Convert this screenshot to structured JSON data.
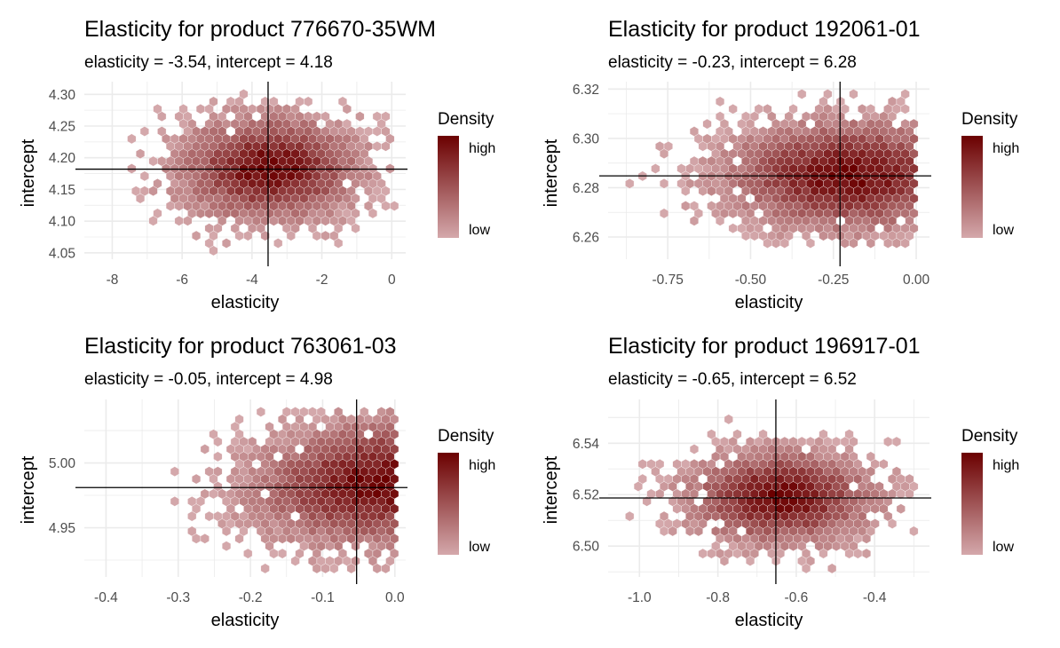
{
  "chart_data": [
    {
      "type": "heatmap",
      "title": "Elasticity for product 776670-35WM",
      "subtitle": "elasticity = -3.54, intercept = 4.18",
      "xlabel": "elasticity",
      "ylabel": "intercept",
      "xlim": [
        -8.8,
        0.4
      ],
      "ylim": [
        4.04,
        4.32
      ],
      "xticks": [
        -8,
        -6,
        -4,
        -2,
        0
      ],
      "xtick_labels": [
        "-8",
        "-6",
        "-4",
        "-2",
        "0"
      ],
      "yticks": [
        4.05,
        4.1,
        4.15,
        4.2,
        4.25,
        4.3
      ],
      "ytick_labels": [
        "4.05",
        "4.10",
        "4.15",
        "4.20",
        "4.25",
        "4.30"
      ],
      "vline": -3.54,
      "hline": 4.182,
      "density_center": [
        -3.5,
        4.183
      ],
      "density_spread": [
        1.65,
        0.052
      ],
      "density_tilt": 0,
      "data_extent": [
        -8.5,
        0.1,
        4.05,
        4.31
      ],
      "legend": {
        "title": "Density",
        "high": "high",
        "low": "low"
      },
      "grid": true
    },
    {
      "type": "heatmap",
      "title": "Elasticity for product 192061-01",
      "subtitle": "elasticity = -0.23, intercept = 6.28",
      "xlabel": "elasticity",
      "ylabel": "intercept",
      "xlim": [
        -0.93,
        0.04
      ],
      "ylim": [
        6.251,
        6.323
      ],
      "xticks": [
        -0.75,
        -0.5,
        -0.25,
        0.0
      ],
      "xtick_labels": [
        "-0.75",
        "-0.50",
        "-0.25",
        "0.00"
      ],
      "yticks": [
        6.26,
        6.28,
        6.3,
        6.32
      ],
      "ytick_labels": [
        "6.26",
        "6.28",
        "6.30",
        "6.32"
      ],
      "vline": -0.23,
      "hline": 6.2848,
      "density_center": [
        -0.2,
        6.285
      ],
      "density_spread": [
        0.24,
        0.014
      ],
      "density_tilt": 0,
      "data_extent": [
        -0.9,
        0.0,
        6.255,
        6.318
      ],
      "legend": {
        "title": "Density",
        "high": "high",
        "low": "low"
      },
      "grid": true
    },
    {
      "type": "heatmap",
      "title": "Elasticity for product 763061-03",
      "subtitle": "elasticity = -0.05, intercept = 4.98",
      "xlabel": "elasticity",
      "ylabel": "intercept",
      "xlim": [
        -0.43,
        0.015
      ],
      "ylim": [
        4.912,
        5.049
      ],
      "xticks": [
        -0.4,
        -0.3,
        -0.2,
        -0.1,
        0.0
      ],
      "xtick_labels": [
        "-0.4",
        "-0.3",
        "-0.2",
        "-0.1",
        "0.0"
      ],
      "yticks": [
        4.95,
        5.0
      ],
      "ytick_labels": [
        "4.95",
        "5.00"
      ],
      "vline": -0.053,
      "hline": 4.981,
      "density_center": [
        -0.02,
        4.985
      ],
      "density_spread": [
        0.11,
        0.03
      ],
      "density_tilt": 0.09,
      "data_extent": [
        -0.42,
        0.005,
        4.915,
        5.045
      ],
      "legend": {
        "title": "Density",
        "high": "high",
        "low": "low"
      },
      "grid": true
    },
    {
      "type": "heatmap",
      "title": "Elasticity for product 196917-01",
      "subtitle": "elasticity = -0.65, intercept = 6.52",
      "xlabel": "elasticity",
      "ylabel": "intercept",
      "xlim": [
        -1.08,
        -0.26
      ],
      "ylim": [
        6.488,
        6.557
      ],
      "xticks": [
        -1.0,
        -0.8,
        -0.6,
        -0.4
      ],
      "xtick_labels": [
        "-1.0",
        "-0.8",
        "-0.6",
        "-0.4"
      ],
      "yticks": [
        6.5,
        6.52,
        6.54
      ],
      "ytick_labels": [
        "6.50",
        "6.52",
        "6.54"
      ],
      "vline": -0.652,
      "hline": 6.5187,
      "density_center": [
        -0.64,
        6.519
      ],
      "density_spread": [
        0.15,
        0.0115
      ],
      "density_tilt": 0,
      "data_extent": [
        -1.05,
        -0.3,
        6.49,
        6.553
      ],
      "legend": {
        "title": "Density",
        "high": "high",
        "low": "low"
      },
      "grid": true
    }
  ],
  "colors": {
    "low": "#d4a8ab",
    "high": "#6b0000",
    "grid": "#ebebeb",
    "refline": "#000000",
    "text": "#000000",
    "tick_text": "#4d4d4d"
  }
}
